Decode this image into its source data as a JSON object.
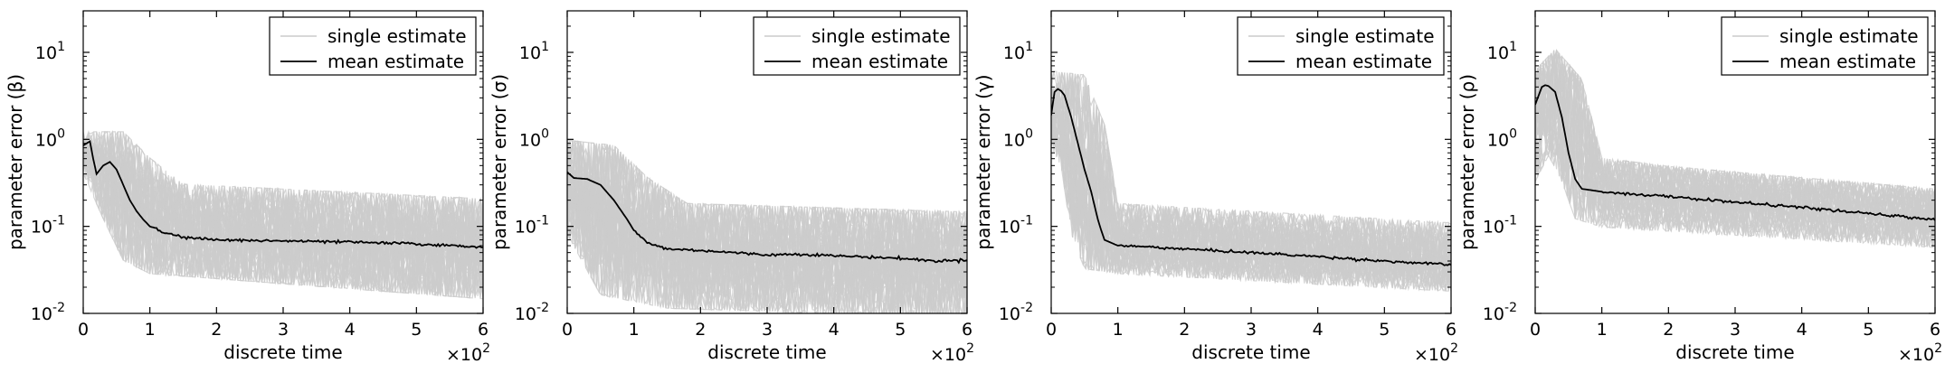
{
  "chart_data": [
    {
      "type": "line",
      "xlabel": "discrete time",
      "ylabel": "parameter error (β)",
      "xlim": [
        0,
        6
      ],
      "x_ticks": [
        "0",
        "1",
        "2",
        "3",
        "4",
        "5",
        "6"
      ],
      "x_multiplier": {
        "base": "×10",
        "exp": "2"
      },
      "yscale": "log",
      "ylim": [
        0.01,
        30
      ],
      "y_ticks": [
        {
          "base": "10",
          "exp": "-2",
          "value": 0.01
        },
        {
          "base": "10",
          "exp": "-1",
          "value": 0.1
        },
        {
          "base": "10",
          "exp": "0",
          "value": 1
        },
        {
          "base": "10",
          "exp": "1",
          "value": 10
        }
      ],
      "legend": {
        "position": "top-right",
        "entries": [
          "single estimate",
          "mean estimate"
        ]
      },
      "series": [
        {
          "name": "single estimate",
          "color": "#cccccc",
          "band_low": [
            [
              0,
              0.5
            ],
            [
              0.3,
              0.15
            ],
            [
              0.6,
              0.05
            ],
            [
              1,
              0.035
            ],
            [
              6,
              0.018
            ]
          ],
          "band_high": [
            [
              0,
              1
            ],
            [
              0.6,
              1
            ],
            [
              1,
              0.5
            ],
            [
              1.5,
              0.25
            ],
            [
              6,
              0.17
            ]
          ]
        },
        {
          "name": "mean estimate",
          "color": "#000000",
          "x": [
            0,
            0.1,
            0.15,
            0.2,
            0.3,
            0.4,
            0.5,
            0.6,
            0.7,
            0.8,
            0.9,
            1.0,
            1.2,
            1.5,
            2.0,
            3.0,
            4.0,
            5.0,
            5.5,
            6.0
          ],
          "y": [
            0.85,
            0.95,
            0.6,
            0.4,
            0.5,
            0.55,
            0.45,
            0.3,
            0.2,
            0.15,
            0.12,
            0.1,
            0.085,
            0.075,
            0.07,
            0.068,
            0.066,
            0.063,
            0.06,
            0.058
          ]
        }
      ]
    },
    {
      "type": "line",
      "xlabel": "discrete time",
      "ylabel": "parameter error (σ)",
      "xlim": [
        0,
        6
      ],
      "x_ticks": [
        "0",
        "1",
        "2",
        "3",
        "4",
        "5",
        "6"
      ],
      "x_multiplier": {
        "base": "×10",
        "exp": "2"
      },
      "yscale": "log",
      "ylim": [
        0.01,
        30
      ],
      "y_ticks": [
        {
          "base": "10",
          "exp": "-2",
          "value": 0.01
        },
        {
          "base": "10",
          "exp": "-1",
          "value": 0.1
        },
        {
          "base": "10",
          "exp": "0",
          "value": 1
        },
        {
          "base": "10",
          "exp": "1",
          "value": 10
        }
      ],
      "legend": {
        "position": "top-right",
        "entries": [
          "single estimate",
          "mean estimate"
        ]
      },
      "series": [
        {
          "name": "single estimate",
          "color": "#cccccc",
          "band_low": [
            [
              0,
              0.1
            ],
            [
              0.5,
              0.02
            ],
            [
              1.5,
              0.014
            ],
            [
              6,
              0.011
            ]
          ],
          "band_high": [
            [
              0,
              0.8
            ],
            [
              0.7,
              0.7
            ],
            [
              1.2,
              0.3
            ],
            [
              1.8,
              0.15
            ],
            [
              6,
              0.12
            ]
          ]
        },
        {
          "name": "mean estimate",
          "color": "#000000",
          "x": [
            0,
            0.1,
            0.3,
            0.5,
            0.7,
            0.9,
            1.0,
            1.2,
            1.5,
            2.0,
            3.0,
            3.5,
            4.0,
            5.0,
            5.5,
            6.0
          ],
          "y": [
            0.42,
            0.36,
            0.35,
            0.3,
            0.2,
            0.12,
            0.09,
            0.065,
            0.055,
            0.053,
            0.047,
            0.048,
            0.046,
            0.043,
            0.04,
            0.041
          ]
        }
      ]
    },
    {
      "type": "line",
      "xlabel": "discrete time",
      "ylabel": "parameter error (γ)",
      "xlim": [
        0,
        6
      ],
      "x_ticks": [
        "0",
        "1",
        "2",
        "3",
        "4",
        "5",
        "6"
      ],
      "x_multiplier": {
        "base": "×10",
        "exp": "2"
      },
      "yscale": "log",
      "ylim": [
        0.01,
        30
      ],
      "y_ticks": [
        {
          "base": "10",
          "exp": "-2",
          "value": 0.01
        },
        {
          "base": "10",
          "exp": "-1",
          "value": 0.1
        },
        {
          "base": "10",
          "exp": "0",
          "value": 1
        },
        {
          "base": "10",
          "exp": "1",
          "value": 10
        }
      ],
      "legend": {
        "position": "top-right",
        "entries": [
          "single estimate",
          "mean estimate"
        ]
      },
      "series": [
        {
          "name": "single estimate",
          "color": "#cccccc",
          "band_low": [
            [
              0,
              1
            ],
            [
              0.15,
              0.6
            ],
            [
              0.3,
              0.1
            ],
            [
              0.5,
              0.04
            ],
            [
              1,
              0.035
            ],
            [
              6,
              0.022
            ]
          ],
          "band_high": [
            [
              0,
              5
            ],
            [
              0.5,
              4.5
            ],
            [
              0.8,
              1.2
            ],
            [
              1,
              0.15
            ],
            [
              6,
              0.09
            ]
          ]
        },
        {
          "name": "mean estimate",
          "color": "#000000",
          "x": [
            0,
            0.05,
            0.1,
            0.15,
            0.2,
            0.3,
            0.4,
            0.5,
            0.6,
            0.7,
            0.75,
            0.8,
            1.0,
            1.5,
            2.0,
            3.0,
            4.0,
            5.0,
            6.0
          ],
          "y": [
            1.9,
            3.5,
            3.8,
            3.6,
            3.2,
            1.8,
            0.9,
            0.45,
            0.25,
            0.12,
            0.09,
            0.07,
            0.06,
            0.058,
            0.055,
            0.05,
            0.045,
            0.04,
            0.036
          ]
        }
      ]
    },
    {
      "type": "line",
      "xlabel": "discrete time",
      "ylabel": "parameter error (ρ)",
      "xlim": [
        0,
        6
      ],
      "x_ticks": [
        "0",
        "1",
        "2",
        "3",
        "4",
        "5",
        "6"
      ],
      "x_multiplier": {
        "base": "×10",
        "exp": "2"
      },
      "yscale": "log",
      "ylim": [
        0.01,
        30
      ],
      "y_ticks": [
        {
          "base": "10",
          "exp": "-2",
          "value": 0.01
        },
        {
          "base": "10",
          "exp": "-1",
          "value": 0.1
        },
        {
          "base": "10",
          "exp": "0",
          "value": 1
        },
        {
          "base": "10",
          "exp": "1",
          "value": 10
        }
      ],
      "legend": {
        "position": "top-right",
        "entries": [
          "single estimate",
          "mean estimate"
        ]
      },
      "series": [
        {
          "name": "single estimate",
          "color": "#cccccc",
          "band_low": [
            [
              0,
              0.4
            ],
            [
              0.2,
              0.8
            ],
            [
              0.4,
              0.4
            ],
            [
              0.6,
              0.15
            ],
            [
              1,
              0.12
            ],
            [
              6,
              0.07
            ]
          ],
          "band_high": [
            [
              0,
              5
            ],
            [
              0.3,
              9
            ],
            [
              0.7,
              4
            ],
            [
              1,
              0.5
            ],
            [
              2,
              0.4
            ],
            [
              6,
              0.22
            ]
          ]
        },
        {
          "name": "mean estimate",
          "color": "#000000",
          "x": [
            0,
            0.1,
            0.15,
            0.2,
            0.3,
            0.4,
            0.5,
            0.6,
            0.7,
            1.0,
            2.0,
            3.0,
            4.0,
            5.0,
            6.0
          ],
          "y": [
            2.5,
            4.0,
            4.2,
            4.1,
            3.5,
            1.8,
            0.7,
            0.35,
            0.27,
            0.25,
            0.22,
            0.19,
            0.165,
            0.14,
            0.12
          ]
        }
      ]
    }
  ]
}
